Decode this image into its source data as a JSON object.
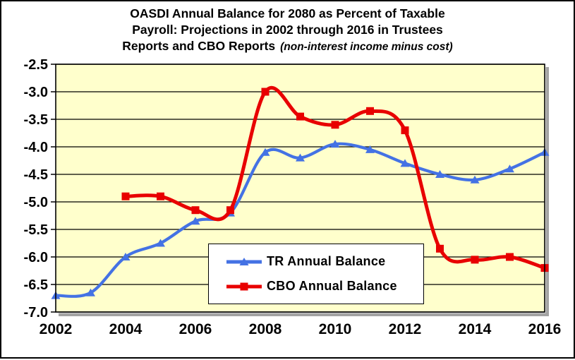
{
  "title": {
    "line1": "OASDI Annual Balance for 2080 as Percent of Taxable",
    "line2": "Payroll: Projections in 2002 through 2016 in Trustees",
    "line3_main": "Reports and CBO Reports",
    "line3_italic": "(non-interest income minus cost)"
  },
  "legend": {
    "items": [
      {
        "label": "TR Annual Balance"
      },
      {
        "label": "CBO Annual Balance"
      }
    ]
  },
  "chart_data": {
    "type": "line",
    "title": "OASDI Annual Balance for 2080 as Percent of Taxable Payroll: Projections in 2002 through 2016 in Trustees Reports and CBO Reports",
    "subtitle": "(non-interest income minus cost)",
    "xlabel": "",
    "ylabel": "",
    "xlim": [
      2002,
      2016
    ],
    "ylim": [
      -7.0,
      -2.5
    ],
    "x_ticks": [
      2002,
      2004,
      2006,
      2008,
      2010,
      2012,
      2014,
      2016
    ],
    "x_tick_labels": [
      "2002",
      "2004",
      "2006",
      "2008",
      "2010",
      "2012",
      "2014",
      "2016"
    ],
    "y_ticks": [
      -2.5,
      -3.0,
      -3.5,
      -4.0,
      -4.5,
      -5.0,
      -5.5,
      -6.0,
      -6.5,
      -7.0
    ],
    "y_tick_labels": [
      "-2.5",
      "-3.0",
      "-3.5",
      "-4.0",
      "-4.5",
      "-5.0",
      "-5.5",
      "-6.0",
      "-6.5",
      "-7.0"
    ],
    "grid": "horizontal",
    "grid_color": "#000000",
    "plot_background": "#FFFFCC",
    "shadow_color": "#A3A3A3",
    "legend_position": "inside-bottom-center",
    "series": [
      {
        "name": "TR Annual Balance",
        "color": "#4472E4",
        "marker": "triangle",
        "x": [
          2002,
          2003,
          2004,
          2005,
          2006,
          2007,
          2008,
          2009,
          2010,
          2011,
          2012,
          2013,
          2014,
          2015,
          2016
        ],
        "values": [
          -6.7,
          -6.65,
          -6.0,
          -5.75,
          -5.35,
          -5.2,
          -4.1,
          -4.2,
          -3.95,
          -4.05,
          -4.3,
          -4.5,
          -4.6,
          -4.4,
          -4.1
        ]
      },
      {
        "name": "CBO Annual Balance",
        "color": "#E80000",
        "marker": "square",
        "x": [
          2004,
          2005,
          2006,
          2007,
          2008,
          2009,
          2010,
          2011,
          2012,
          2013,
          2014,
          2015,
          2016
        ],
        "values": [
          -4.9,
          -4.9,
          -5.15,
          -5.15,
          -3.0,
          -3.45,
          -3.6,
          -3.35,
          -3.7,
          -5.85,
          -6.05,
          -6.0,
          -6.2
        ]
      }
    ]
  }
}
